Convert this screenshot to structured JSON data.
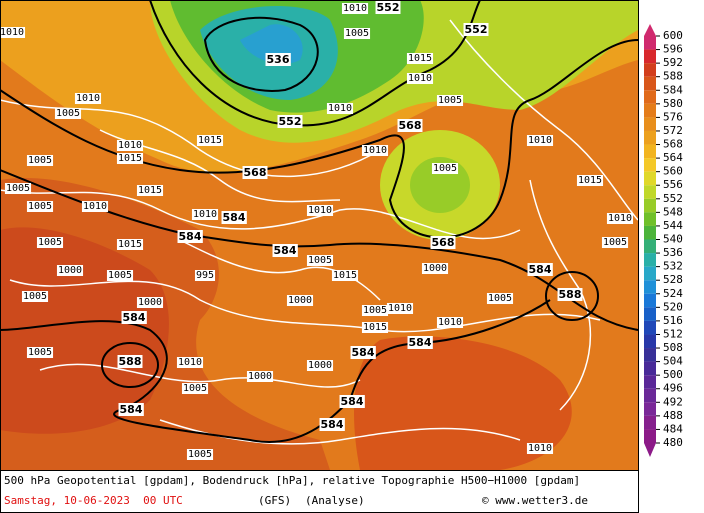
{
  "colorbar": {
    "ticks": [
      600,
      596,
      592,
      588,
      584,
      580,
      576,
      572,
      568,
      564,
      560,
      556,
      552,
      548,
      544,
      540,
      536,
      532,
      528,
      524,
      520,
      516,
      512,
      508,
      504,
      500,
      496,
      492,
      488,
      484,
      480
    ],
    "colors": [
      "#d02a6e",
      "#d8282c",
      "#d23e1c",
      "#d8561a",
      "#e06a1a",
      "#e47c1a",
      "#e88e1c",
      "#eca01e",
      "#f2b420",
      "#f4c828",
      "#e0d82a",
      "#c0d82a",
      "#98cc28",
      "#70c02a",
      "#4cb43a",
      "#34b078",
      "#2ab0a8",
      "#28a8c8",
      "#2090d8",
      "#1a78d8",
      "#1860c8",
      "#2048b8",
      "#2838a8",
      "#383098",
      "#482a98",
      "#5a2898",
      "#6a2898",
      "#7a2898",
      "#86208e",
      "#8c1a88"
    ]
  },
  "geopotential_labels": [
    "536",
    "552",
    "552",
    "552",
    "568",
    "568",
    "568",
    "584",
    "584",
    "584",
    "584",
    "588",
    "588",
    "584",
    "584",
    "584",
    "584",
    "584",
    "584"
  ],
  "isobar_labels": [
    "1010",
    "1010",
    "1005",
    "1005",
    "1010",
    "1005",
    "1015",
    "1005",
    "1010",
    "1015",
    "1005",
    "1015",
    "1010",
    "1000",
    "1005",
    "1000",
    "1005",
    "1010",
    "1005",
    "1000",
    "1005",
    "1015",
    "1010",
    "1005",
    "995",
    "1000",
    "1005",
    "1010",
    "1015",
    "1010",
    "1005",
    "1015",
    "1010",
    "1005",
    "1000",
    "1015",
    "1010",
    "1005",
    "1010",
    "1005",
    "1010",
    "1010",
    "1015",
    "1010",
    "1005",
    "1000",
    "1005",
    "1010"
  ],
  "footer": {
    "line1": "500 hPa Geopotential [gpdam], Bodendruck [hPa], relative Topographie H500−H1000 [gpdam]",
    "date": "Samstag, 10-06-2023  00 UTC",
    "model": "(GFS)",
    "run": "(Analyse)",
    "credit": "© www.wetter3.de"
  }
}
